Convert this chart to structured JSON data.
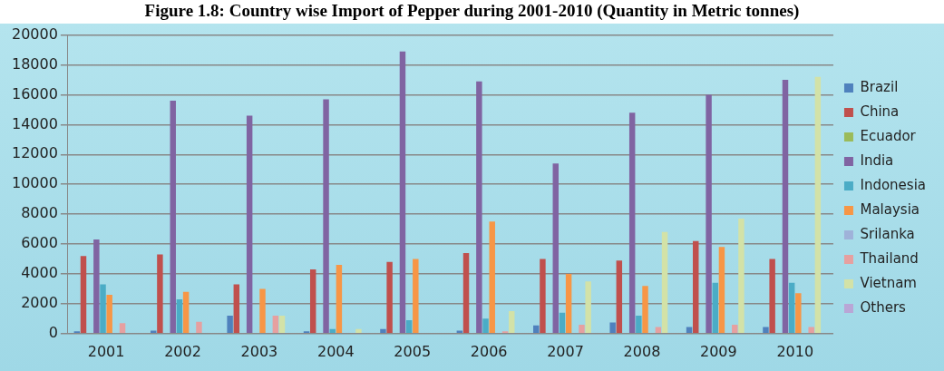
{
  "chart_data": {
    "type": "bar",
    "title": "Figure 1.8: Country wise Import of Pepper during 2001-2010 (Quantity in Metric tonnes)",
    "categories": [
      "2001",
      "2002",
      "2003",
      "2004",
      "2005",
      "2006",
      "2007",
      "2008",
      "2009",
      "2010"
    ],
    "series": [
      {
        "name": "Brazil",
        "color": "#4f81bd",
        "values": [
          150,
          200,
          1200,
          150,
          300,
          200,
          550,
          750,
          450,
          450
        ]
      },
      {
        "name": "China",
        "color": "#c0504d",
        "values": [
          5200,
          5300,
          3300,
          4300,
          4800,
          5400,
          5000,
          4900,
          6200,
          5000
        ]
      },
      {
        "name": "Ecuador",
        "color": "#9bbb59",
        "values": [
          0,
          0,
          0,
          0,
          0,
          0,
          0,
          0,
          0,
          0
        ]
      },
      {
        "name": "India",
        "color": "#8064a2",
        "values": [
          6300,
          15600,
          14600,
          15700,
          18900,
          16900,
          11400,
          14800,
          16000,
          17000
        ]
      },
      {
        "name": "Indonesia",
        "color": "#4bacc6",
        "values": [
          3300,
          2300,
          0,
          300,
          900,
          1000,
          1400,
          1200,
          3400,
          3400
        ]
      },
      {
        "name": "Malaysia",
        "color": "#f79646",
        "values": [
          2600,
          2800,
          3000,
          4600,
          5000,
          7500,
          4000,
          3200,
          5800,
          2700
        ]
      },
      {
        "name": "Srilanka",
        "color": "#9fb2d9",
        "values": [
          0,
          0,
          0,
          0,
          0,
          0,
          0,
          0,
          0,
          0
        ]
      },
      {
        "name": "Thailand",
        "color": "#e6a0a0",
        "values": [
          700,
          800,
          1200,
          0,
          0,
          150,
          600,
          450,
          600,
          450
        ]
      },
      {
        "name": "Vietnam",
        "color": "#d3e2a7",
        "values": [
          0,
          0,
          1200,
          300,
          0,
          1500,
          3500,
          6800,
          7700,
          17200
        ]
      },
      {
        "name": "Others",
        "color": "#b9a6d6",
        "values": [
          0,
          0,
          0,
          0,
          0,
          0,
          0,
          0,
          0,
          0
        ]
      }
    ],
    "ylim": [
      0,
      20000
    ],
    "yticks": [
      0,
      2000,
      4000,
      6000,
      8000,
      10000,
      12000,
      14000,
      16000,
      18000,
      20000
    ],
    "grid": "y",
    "legend": "right"
  }
}
